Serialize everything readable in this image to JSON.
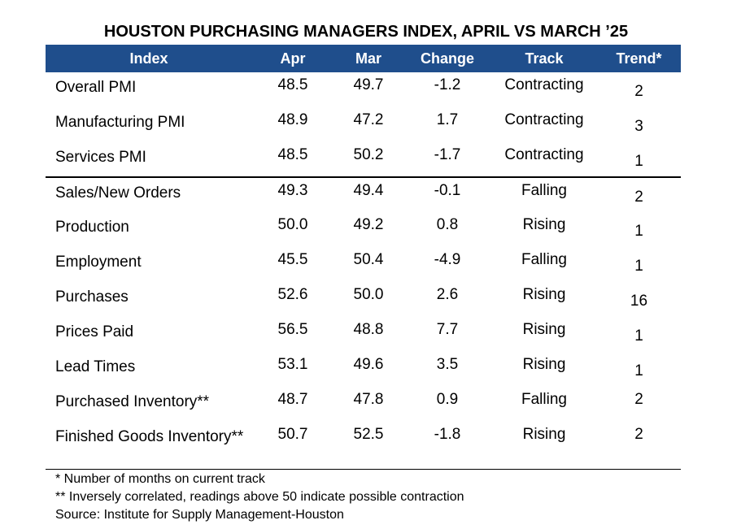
{
  "title": "HOUSTON PURCHASING MANAGERS INDEX, APRIL VS MARCH ’25",
  "header": {
    "index": "Index",
    "apr": "Apr",
    "mar": "Mar",
    "change": "Change",
    "track": "Track",
    "trend": "Trend*"
  },
  "colors": {
    "header_bg": "#1f4e8c",
    "header_text": "#ffffff"
  },
  "rows": [
    {
      "index": "Overall PMI",
      "apr": "48.5",
      "mar": "49.7",
      "change": "-1.2",
      "track": "Contracting",
      "trend": "2"
    },
    {
      "index": "Manufacturing PMI",
      "apr": "48.9",
      "mar": "47.2",
      "change": "1.7",
      "track": "Contracting",
      "trend": "3"
    },
    {
      "index": "Services PMI",
      "apr": "48.5",
      "mar": "50.2",
      "change": "-1.7",
      "track": "Contracting",
      "trend": "1"
    },
    {
      "index": "Sales/New Orders",
      "apr": "49.3",
      "mar": "49.4",
      "change": "-0.1",
      "track": "Falling",
      "trend": "2"
    },
    {
      "index": "Production",
      "apr": "50.0",
      "mar": "49.2",
      "change": "0.8",
      "track": "Rising",
      "trend": "1"
    },
    {
      "index": "Employment",
      "apr": "45.5",
      "mar": "50.4",
      "change": "-4.9",
      "track": "Falling",
      "trend": "1"
    },
    {
      "index": "Purchases",
      "apr": "52.6",
      "mar": "50.0",
      "change": "2.6",
      "track": "Rising",
      "trend": "16"
    },
    {
      "index": "Prices Paid",
      "apr": "56.5",
      "mar": "48.8",
      "change": "7.7",
      "track": "Rising",
      "trend": "1"
    },
    {
      "index": "Lead Times",
      "apr": "53.1",
      "mar": "49.6",
      "change": "3.5",
      "track": "Rising",
      "trend": "1"
    },
    {
      "index": "Purchased Inventory**",
      "apr": "48.7",
      "mar": "47.8",
      "change": "0.9",
      "track": "Falling",
      "trend": "2"
    },
    {
      "index": "Finished Goods Inventory**",
      "apr": "50.7",
      "mar": "52.5",
      "change": "-1.8",
      "track": "Rising",
      "trend": "2"
    }
  ],
  "notes": {
    "note1": "* Number of months on current track",
    "note2": "** Inversely correlated, readings above 50 indicate possible contraction",
    "source": "Source: Institute for Supply Management-Houston"
  }
}
